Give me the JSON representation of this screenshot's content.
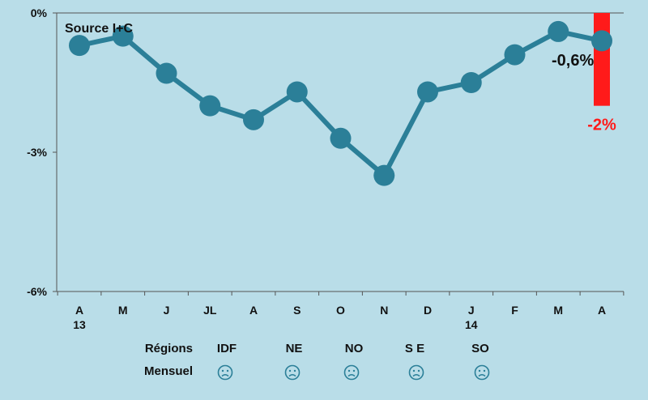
{
  "chart_data": {
    "type": "line",
    "categories": [
      "A",
      "M",
      "J",
      "JL",
      "A",
      "S",
      "O",
      "N",
      "D",
      "J",
      "F",
      "M",
      "A"
    ],
    "year_labels": [
      "13",
      "",
      "",
      "",
      "",
      "",
      "",
      "",
      "",
      "14",
      "",
      "",
      ""
    ],
    "series": [
      {
        "values": [
          -0.7,
          -0.5,
          -1.3,
          -2.0,
          -2.3,
          -1.7,
          -2.7,
          -3.5,
          -1.7,
          -1.5,
          -0.9,
          -0.4,
          -0.6
        ]
      }
    ],
    "bar_overlay": {
      "category_index": 12,
      "value": -2.0,
      "label": "-2%",
      "color": "#ff1a1a"
    },
    "line_callout": "-0,6%",
    "source_text": "Source I+C",
    "ylim": [
      -6,
      0
    ],
    "yticks": [
      0,
      -3,
      -6
    ],
    "ytick_labels": [
      "0%",
      "-3%",
      "-6%"
    ],
    "line_color": "#2b7f98",
    "grid": false
  },
  "regions": {
    "label": "Régions",
    "monthly_label": "Mensuel",
    "items": [
      {
        "name": "IDF",
        "icon": "sad-face-icon"
      },
      {
        "name": "NE",
        "icon": "sad-face-icon"
      },
      {
        "name": "NO",
        "icon": "sad-face-icon"
      },
      {
        "name": "S E",
        "icon": "sad-face-icon"
      },
      {
        "name": "SO",
        "icon": "sad-face-icon"
      }
    ],
    "icon_color": "#2b7f98"
  }
}
